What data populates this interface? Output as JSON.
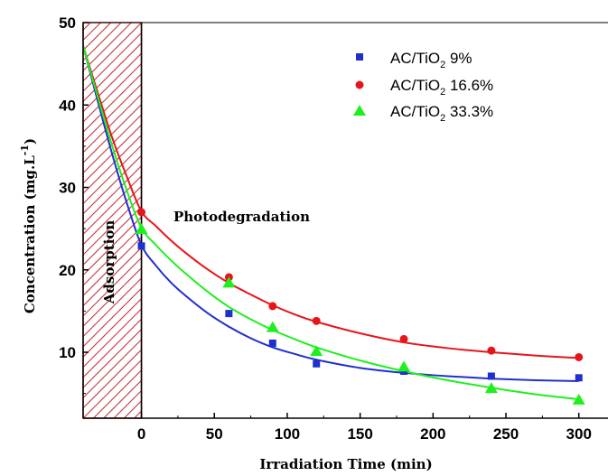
{
  "chart_data": {
    "type": "scatter",
    "xlabel": "Irradiation Time (min)",
    "ylabel_main": "Concentration (mg.L",
    "ylabel_sup": "-1",
    "ylabel_end": ")",
    "xlim": [
      -40,
      320
    ],
    "ylim": [
      2,
      50
    ],
    "x_ticks": [
      0,
      50,
      100,
      150,
      200,
      250,
      300
    ],
    "y_ticks": [
      10,
      20,
      30,
      40,
      50
    ],
    "annotations": {
      "adsorption": "Adsorption",
      "photodegradation": "Photodegradation"
    },
    "adsorption_region": [
      -40,
      0
    ],
    "legend_position": "top-right",
    "series": [
      {
        "name_main": "AC/TiO",
        "name_sub": "2",
        "name_end": " 9%",
        "color": "#1f2fd0",
        "marker": "square",
        "x": [
          0,
          60,
          90,
          120,
          180,
          240,
          300
        ],
        "y": [
          22.9,
          14.7,
          11.1,
          8.6,
          7.7,
          7.1,
          6.9
        ],
        "fit_x": [
          -40,
          -30,
          -20,
          -10,
          0,
          10,
          20,
          30,
          45,
          60,
          75,
          90,
          105,
          120,
          150,
          180,
          210,
          240,
          270,
          300
        ],
        "fit_y": [
          47.2,
          40.5,
          34.0,
          28.1,
          23.0,
          20.5,
          18.5,
          16.9,
          14.8,
          13.1,
          11.7,
          10.6,
          9.8,
          9.1,
          8.1,
          7.5,
          7.1,
          6.8,
          6.6,
          6.5
        ]
      },
      {
        "name_main": "AC/TiO",
        "name_sub": "2",
        "name_end": " 16.6%",
        "color": "#e8141b",
        "marker": "circle",
        "x": [
          0,
          60,
          90,
          120,
          180,
          240,
          300
        ],
        "y": [
          27.0,
          19.1,
          15.6,
          13.8,
          11.6,
          10.2,
          9.4
        ],
        "fit_x": [
          -40,
          -30,
          -20,
          -10,
          0,
          10,
          20,
          30,
          45,
          60,
          75,
          90,
          105,
          120,
          150,
          180,
          210,
          240,
          270,
          300
        ],
        "fit_y": [
          47.2,
          41.5,
          36.0,
          31.3,
          27.1,
          25.3,
          23.6,
          22.1,
          20.1,
          18.4,
          17.0,
          15.7,
          14.6,
          13.7,
          12.3,
          11.2,
          10.5,
          10.0,
          9.6,
          9.3
        ]
      },
      {
        "name_main": "AC/TiO",
        "name_sub": "2",
        "name_end": " 33.3%",
        "color": "#1ef01e",
        "marker": "triangle",
        "x": [
          0,
          60,
          90,
          120,
          180,
          240,
          300
        ],
        "y": [
          24.9,
          18.4,
          13.0,
          10.1,
          8.2,
          5.6,
          4.2
        ],
        "fit_x": [
          -40,
          -30,
          -20,
          -10,
          0,
          10,
          20,
          30,
          45,
          60,
          75,
          90,
          105,
          120,
          150,
          180,
          210,
          240,
          270,
          300
        ],
        "fit_y": [
          47.2,
          41.0,
          35.0,
          29.6,
          25.1,
          23.0,
          21.2,
          19.6,
          17.4,
          15.5,
          14.0,
          12.7,
          11.6,
          10.6,
          9.0,
          7.7,
          6.6,
          5.7,
          4.9,
          4.3
        ]
      }
    ]
  }
}
